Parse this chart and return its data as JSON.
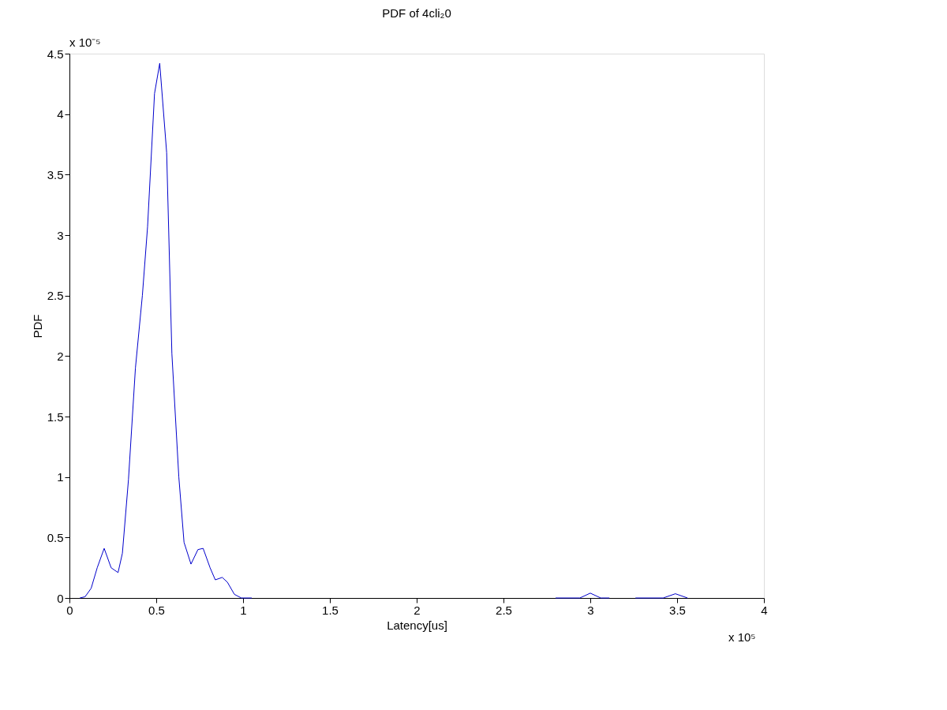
{
  "chart_data": {
    "type": "line",
    "title": "PDF of 4cli₂0",
    "xlabel": "Latency[us]",
    "ylabel": "PDF",
    "annotations": [
      "x 10⁻⁵",
      "x 10⁵"
    ],
    "x": [
      0.06,
      0.09,
      0.125,
      0.16,
      0.2,
      0.24,
      0.28,
      0.305,
      0.34,
      0.38,
      0.42,
      0.45,
      0.49,
      0.52,
      0.56,
      0.59,
      0.63,
      0.66,
      0.7,
      0.74,
      0.77,
      0.81,
      0.84,
      0.88,
      0.91,
      0.95,
      0.99,
      1.05,
      1.5,
      2.8,
      2.94,
      3.0,
      3.06,
      3.11,
      3.2,
      3.26,
      3.42,
      3.49,
      3.56
    ],
    "series": [
      {
        "color": "#0000cc",
        "values": [
          0,
          0.01,
          0.08,
          0.25,
          0.41,
          0.25,
          0.21,
          0.37,
          0.98,
          1.9,
          2.5,
          3.07,
          4.17,
          4.42,
          3.68,
          2.02,
          1.0,
          0.46,
          0.28,
          0.4,
          0.41,
          0.25,
          0.15,
          0.17,
          0.13,
          0.03,
          0,
          0,
          null,
          0,
          0,
          0.04,
          0,
          0,
          null,
          0,
          0,
          0.035,
          0
        ]
      }
    ],
    "xlim": [
      0,
      4
    ],
    "xticks": [
      0,
      0.5,
      1,
      1.5,
      2,
      2.5,
      3,
      3.5,
      4
    ],
    "ylim": [
      0,
      4.5
    ],
    "yticks": [
      0,
      0.5,
      1,
      1.5,
      2,
      2.5,
      3,
      3.5,
      4,
      4.5
    ],
    "grid": false,
    "marker": "none",
    "line_style": "solid"
  }
}
